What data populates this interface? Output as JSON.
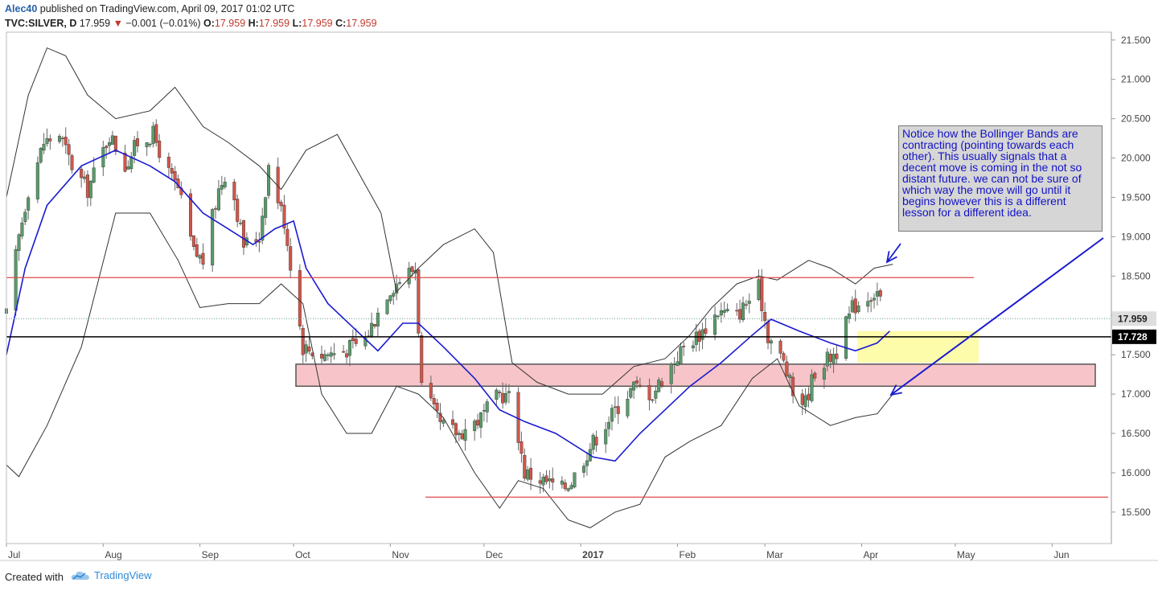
{
  "header": {
    "author": "Alec40",
    "published": "published on TradingView.com, April 09, 2017 01:02 UTC",
    "symbol": "TVC:SILVER, D",
    "last": "17.959",
    "change_arrow": "▼",
    "change": "−0.001 (−0.01%)",
    "open_label": "O:",
    "open": "17.959",
    "high_label": "H:",
    "high": "17.959",
    "low_label": "L:",
    "low": "17.959",
    "close_label": "C:",
    "close": "17.959"
  },
  "footer": {
    "created_label": "Created with",
    "brand": "TradingView",
    "brand_icon": "tradingview-cloud-icon"
  },
  "note": "Notice how the Bollinger Bands are contracting (pointing towards each other). This usually signals that a decent move is coming in the not so distant future. we can not be sure of which way the move will go until it begins however this is a different lesson for a different idea.",
  "colors": {
    "up": "#5a9a6a",
    "down": "#d0564a",
    "sma": "#1a1ad0",
    "band": "#333333",
    "resistance": "#e04a4a",
    "support_zone": "#f7c5c9",
    "yellow_zone": "#fbfb9c",
    "arrow": "#1a1ad0",
    "price_tag": "#dedede",
    "level_tag": "#000000"
  },
  "chart_data": {
    "type": "candlestick",
    "x_ticks": [
      "Jul",
      "Aug",
      "Sep",
      "Oct",
      "Nov",
      "Dec",
      "2017",
      "Feb",
      "Mar",
      "Apr",
      "May",
      "Jun"
    ],
    "y_ticks": [
      "21.500",
      "21.000",
      "20.500",
      "20.000",
      "19.500",
      "19.000",
      "18.500",
      "18.000",
      "17.500",
      "17.000",
      "16.500",
      "16.000",
      "15.500"
    ],
    "ylim": [
      15.1,
      21.6
    ],
    "x_range": [
      "2016-07-01",
      "2017-06-20"
    ],
    "last_price": "17.959",
    "level_label": "17.728",
    "levels": {
      "resistance": 18.48,
      "horizontal_support": 17.728,
      "lower_resistance": 15.69,
      "support_zone": [
        17.1,
        17.38
      ],
      "yellow_zone": [
        17.4,
        17.8
      ]
    },
    "trend": [
      [
        "2016-07-01",
        18.0
      ],
      [
        "2016-07-05",
        19.0
      ],
      [
        "2016-07-08",
        19.6
      ],
      [
        "2016-07-13",
        20.2
      ],
      [
        "2016-07-18",
        20.3
      ],
      [
        "2016-07-22",
        19.9
      ],
      [
        "2016-07-27",
        19.6
      ],
      [
        "2016-08-03",
        20.3
      ],
      [
        "2016-08-08",
        19.9
      ],
      [
        "2016-08-12",
        20.2
      ],
      [
        "2016-08-17",
        20.3
      ],
      [
        "2016-08-22",
        19.8
      ],
      [
        "2016-08-25",
        19.6
      ],
      [
        "2016-08-30",
        18.8
      ],
      [
        "2016-09-02",
        18.7
      ],
      [
        "2016-09-07",
        19.6
      ],
      [
        "2016-09-10",
        19.9
      ],
      [
        "2016-09-15",
        18.9
      ],
      [
        "2016-09-20",
        19.0
      ],
      [
        "2016-09-23",
        19.9
      ],
      [
        "2016-09-28",
        19.2
      ],
      [
        "2016-10-04",
        17.6
      ],
      [
        "2016-10-10",
        17.5
      ],
      [
        "2016-10-17",
        17.55
      ],
      [
        "2016-10-24",
        17.7
      ],
      [
        "2016-10-31",
        18.3
      ],
      [
        "2016-11-05",
        18.5
      ],
      [
        "2016-11-09",
        18.6
      ],
      [
        "2016-11-11",
        17.1
      ],
      [
        "2016-11-17",
        16.6
      ],
      [
        "2016-11-23",
        16.5
      ],
      [
        "2016-11-30",
        16.7
      ],
      [
        "2016-12-06",
        17.0
      ],
      [
        "2016-12-10",
        16.95
      ],
      [
        "2016-12-14",
        16.0
      ],
      [
        "2016-12-20",
        15.9
      ],
      [
        "2016-12-26",
        15.8
      ],
      [
        "2016-12-29",
        15.9
      ],
      [
        "2017-01-05",
        16.4
      ],
      [
        "2017-01-12",
        16.8
      ],
      [
        "2017-01-18",
        17.1
      ],
      [
        "2017-01-24",
        17.0
      ],
      [
        "2017-01-27",
        17.2
      ],
      [
        "2017-02-03",
        17.6
      ],
      [
        "2017-02-09",
        17.8
      ],
      [
        "2017-02-14",
        18.05
      ],
      [
        "2017-02-20",
        18.0
      ],
      [
        "2017-02-27",
        18.35
      ],
      [
        "2017-03-02",
        17.75
      ],
      [
        "2017-03-07",
        17.4
      ],
      [
        "2017-03-10",
        17.0
      ],
      [
        "2017-03-14",
        16.9
      ],
      [
        "2017-03-17",
        17.3
      ],
      [
        "2017-03-24",
        17.55
      ],
      [
        "2017-03-29",
        18.1
      ],
      [
        "2017-04-03",
        18.25
      ],
      [
        "2017-04-06",
        18.3
      ],
      [
        "2017-04-09",
        17.959
      ]
    ],
    "bb_upper": [
      [
        "2016-07-01",
        19.5
      ],
      [
        "2016-07-08",
        20.8
      ],
      [
        "2016-07-14",
        21.4
      ],
      [
        "2016-07-20",
        21.3
      ],
      [
        "2016-07-27",
        20.8
      ],
      [
        "2016-08-05",
        20.5
      ],
      [
        "2016-08-16",
        20.6
      ],
      [
        "2016-08-24",
        20.9
      ],
      [
        "2016-09-02",
        20.4
      ],
      [
        "2016-09-10",
        20.2
      ],
      [
        "2016-09-20",
        19.9
      ],
      [
        "2016-09-27",
        19.6
      ],
      [
        "2016-10-05",
        20.1
      ],
      [
        "2016-10-15",
        20.3
      ],
      [
        "2016-10-22",
        19.8
      ],
      [
        "2016-10-29",
        19.3
      ],
      [
        "2016-11-03",
        18.3
      ],
      [
        "2016-11-10",
        18.6
      ],
      [
        "2016-11-18",
        18.9
      ],
      [
        "2016-11-28",
        19.1
      ],
      [
        "2016-12-04",
        18.8
      ],
      [
        "2016-12-10",
        17.4
      ],
      [
        "2016-12-18",
        17.15
      ],
      [
        "2016-12-28",
        17.0
      ],
      [
        "2017-01-08",
        17.0
      ],
      [
        "2017-01-18",
        17.35
      ],
      [
        "2017-01-28",
        17.45
      ],
      [
        "2017-02-05",
        17.75
      ],
      [
        "2017-02-12",
        18.1
      ],
      [
        "2017-02-20",
        18.4
      ],
      [
        "2017-02-27",
        18.5
      ],
      [
        "2017-03-05",
        18.45
      ],
      [
        "2017-03-15",
        18.7
      ],
      [
        "2017-03-22",
        18.6
      ],
      [
        "2017-03-30",
        18.4
      ],
      [
        "2017-04-05",
        18.6
      ],
      [
        "2017-04-11",
        18.65
      ]
    ],
    "bb_lower": [
      [
        "2016-07-01",
        16.1
      ],
      [
        "2016-07-05",
        15.95
      ],
      [
        "2016-07-14",
        16.6
      ],
      [
        "2016-07-25",
        17.6
      ],
      [
        "2016-08-05",
        19.3
      ],
      [
        "2016-08-16",
        19.3
      ],
      [
        "2016-08-25",
        18.7
      ],
      [
        "2016-09-01",
        18.1
      ],
      [
        "2016-09-10",
        18.15
      ],
      [
        "2016-09-20",
        18.15
      ],
      [
        "2016-09-27",
        18.4
      ],
      [
        "2016-10-04",
        18.15
      ],
      [
        "2016-10-10",
        17.0
      ],
      [
        "2016-10-18",
        16.5
      ],
      [
        "2016-10-26",
        16.5
      ],
      [
        "2016-11-03",
        17.1
      ],
      [
        "2016-11-10",
        17.0
      ],
      [
        "2016-11-18",
        16.7
      ],
      [
        "2016-11-28",
        16.0
      ],
      [
        "2016-12-06",
        15.55
      ],
      [
        "2016-12-12",
        15.9
      ],
      [
        "2016-12-20",
        15.8
      ],
      [
        "2016-12-28",
        15.4
      ],
      [
        "2017-01-04",
        15.3
      ],
      [
        "2017-01-12",
        15.5
      ],
      [
        "2017-01-20",
        15.6
      ],
      [
        "2017-01-28",
        16.2
      ],
      [
        "2017-02-05",
        16.4
      ],
      [
        "2017-02-15",
        16.6
      ],
      [
        "2017-02-25",
        17.2
      ],
      [
        "2017-03-05",
        17.45
      ],
      [
        "2017-03-12",
        16.85
      ],
      [
        "2017-03-22",
        16.6
      ],
      [
        "2017-03-30",
        16.7
      ],
      [
        "2017-04-06",
        16.75
      ],
      [
        "2017-04-11",
        17.0
      ]
    ],
    "sma": [
      [
        "2016-07-01",
        17.5
      ],
      [
        "2016-07-07",
        18.6
      ],
      [
        "2016-07-14",
        19.4
      ],
      [
        "2016-07-25",
        19.9
      ],
      [
        "2016-08-05",
        20.1
      ],
      [
        "2016-08-16",
        19.9
      ],
      [
        "2016-08-24",
        19.7
      ],
      [
        "2016-09-02",
        19.3
      ],
      [
        "2016-09-10",
        19.1
      ],
      [
        "2016-09-18",
        18.9
      ],
      [
        "2016-09-25",
        19.1
      ],
      [
        "2016-10-01",
        19.2
      ],
      [
        "2016-10-05",
        18.6
      ],
      [
        "2016-10-12",
        18.15
      ],
      [
        "2016-10-20",
        17.85
      ],
      [
        "2016-10-28",
        17.55
      ],
      [
        "2016-11-05",
        17.9
      ],
      [
        "2016-11-10",
        17.9
      ],
      [
        "2016-11-18",
        17.6
      ],
      [
        "2016-11-28",
        17.2
      ],
      [
        "2016-12-06",
        16.8
      ],
      [
        "2016-12-14",
        16.65
      ],
      [
        "2016-12-24",
        16.5
      ],
      [
        "2017-01-05",
        16.2
      ],
      [
        "2017-01-12",
        16.15
      ],
      [
        "2017-01-20",
        16.5
      ],
      [
        "2017-01-28",
        16.8
      ],
      [
        "2017-02-05",
        17.1
      ],
      [
        "2017-02-15",
        17.4
      ],
      [
        "2017-02-25",
        17.75
      ],
      [
        "2017-03-03",
        17.95
      ],
      [
        "2017-03-12",
        17.8
      ],
      [
        "2017-03-22",
        17.65
      ],
      [
        "2017-03-30",
        17.55
      ],
      [
        "2017-04-06",
        17.65
      ],
      [
        "2017-04-10",
        17.8
      ]
    ]
  }
}
